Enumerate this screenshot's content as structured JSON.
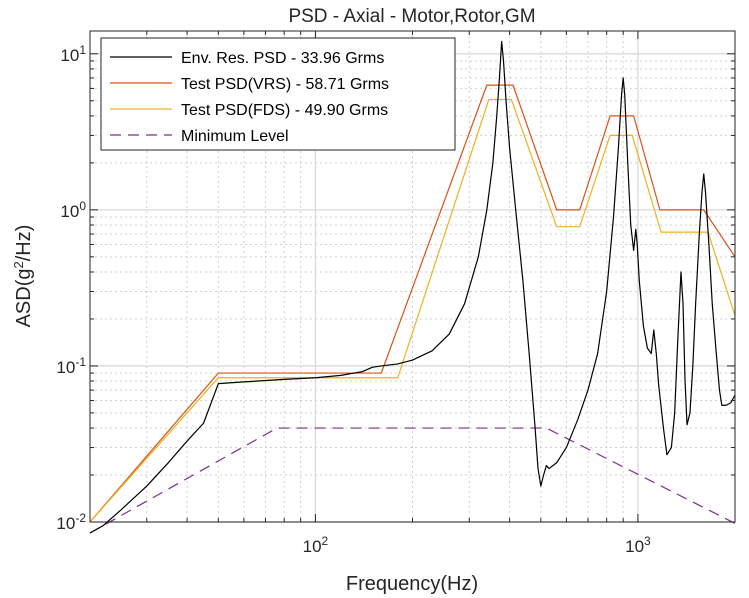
{
  "chart_data": {
    "type": "line",
    "title": "PSD - Axial - Motor,Rotor,GM",
    "xlabel": "Frequency(Hz)",
    "ylabel_prefix": "ASD(g",
    "ylabel_sup": "2",
    "ylabel_suffix": "/Hz)",
    "x_scale": "log",
    "y_scale": "log",
    "xlim": [
      20,
      2000
    ],
    "ylim": [
      0.01,
      14
    ],
    "grid": true,
    "legend_position": "top-left",
    "x_ticks": [
      {
        "value": 100,
        "base": "10",
        "exp": "2"
      },
      {
        "value": 1000,
        "base": "10",
        "exp": "3"
      }
    ],
    "y_ticks": [
      {
        "value": 0.01,
        "base": "10",
        "exp": "-2"
      },
      {
        "value": 0.1,
        "base": "10",
        "exp": "-1"
      },
      {
        "value": 1,
        "base": "10",
        "exp": "0"
      },
      {
        "value": 10,
        "base": "10",
        "exp": "1"
      }
    ],
    "series": [
      {
        "name": "Env. Res. PSD - 33.96 Grms",
        "color": "#000000",
        "dash": "",
        "points": [
          [
            20,
            0.0085
          ],
          [
            22,
            0.0095
          ],
          [
            25,
            0.012
          ],
          [
            30,
            0.017
          ],
          [
            35,
            0.024
          ],
          [
            40,
            0.033
          ],
          [
            45,
            0.043
          ],
          [
            50,
            0.077
          ],
          [
            60,
            0.079
          ],
          [
            80,
            0.082
          ],
          [
            100,
            0.084
          ],
          [
            120,
            0.087
          ],
          [
            140,
            0.092
          ],
          [
            150,
            0.098
          ],
          [
            160,
            0.1
          ],
          [
            180,
            0.103
          ],
          [
            200,
            0.109
          ],
          [
            230,
            0.125
          ],
          [
            260,
            0.16
          ],
          [
            290,
            0.25
          ],
          [
            320,
            0.5
          ],
          [
            340,
            1.0
          ],
          [
            355,
            2.0
          ],
          [
            365,
            4.0
          ],
          [
            372,
            7.0
          ],
          [
            378,
            12.0
          ],
          [
            383,
            9.0
          ],
          [
            390,
            5.0
          ],
          [
            400,
            2.5
          ],
          [
            420,
            0.9
          ],
          [
            440,
            0.35
          ],
          [
            460,
            0.12
          ],
          [
            480,
            0.04
          ],
          [
            490,
            0.022
          ],
          [
            500,
            0.017
          ],
          [
            510,
            0.02
          ],
          [
            520,
            0.023
          ],
          [
            530,
            0.022
          ],
          [
            560,
            0.024
          ],
          [
            600,
            0.03
          ],
          [
            650,
            0.045
          ],
          [
            700,
            0.07
          ],
          [
            750,
            0.12
          ],
          [
            800,
            0.3
          ],
          [
            840,
            0.9
          ],
          [
            870,
            2.5
          ],
          [
            890,
            5.5
          ],
          [
            900,
            7.0
          ],
          [
            910,
            5.5
          ],
          [
            930,
            2.0
          ],
          [
            950,
            0.8
          ],
          [
            970,
            0.55
          ],
          [
            985,
            0.75
          ],
          [
            995,
            0.6
          ],
          [
            1010,
            0.35
          ],
          [
            1040,
            0.18
          ],
          [
            1070,
            0.13
          ],
          [
            1100,
            0.12
          ],
          [
            1120,
            0.17
          ],
          [
            1140,
            0.12
          ],
          [
            1160,
            0.075
          ],
          [
            1200,
            0.04
          ],
          [
            1230,
            0.027
          ],
          [
            1270,
            0.03
          ],
          [
            1300,
            0.05
          ],
          [
            1330,
            0.15
          ],
          [
            1360,
            0.4
          ],
          [
            1380,
            0.25
          ],
          [
            1400,
            0.08
          ],
          [
            1420,
            0.042
          ],
          [
            1450,
            0.05
          ],
          [
            1480,
            0.1
          ],
          [
            1510,
            0.25
          ],
          [
            1550,
            0.7
          ],
          [
            1580,
            1.3
          ],
          [
            1600,
            1.7
          ],
          [
            1620,
            1.3
          ],
          [
            1660,
            0.6
          ],
          [
            1700,
            0.25
          ],
          [
            1750,
            0.12
          ],
          [
            1790,
            0.07
          ],
          [
            1820,
            0.056
          ],
          [
            1880,
            0.056
          ],
          [
            1940,
            0.058
          ],
          [
            2000,
            0.065
          ]
        ]
      },
      {
        "name": "Test PSD(VRS) - 58.71 Grms",
        "color": "#d95319",
        "dash": "",
        "points": [
          [
            20,
            0.01
          ],
          [
            50,
            0.09
          ],
          [
            160,
            0.09
          ],
          [
            340,
            6.3
          ],
          [
            410,
            6.3
          ],
          [
            560,
            1.0
          ],
          [
            660,
            1.0
          ],
          [
            820,
            4.0
          ],
          [
            970,
            4.0
          ],
          [
            1170,
            1.0
          ],
          [
            1600,
            1.0
          ],
          [
            2000,
            0.5
          ]
        ]
      },
      {
        "name": "Test PSD(FDS) - 49.90 Grms",
        "color": "#edb120",
        "dash": "",
        "points": [
          [
            20,
            0.01
          ],
          [
            50,
            0.084
          ],
          [
            180,
            0.084
          ],
          [
            345,
            5.1
          ],
          [
            405,
            5.1
          ],
          [
            560,
            0.78
          ],
          [
            660,
            0.78
          ],
          [
            820,
            3.0
          ],
          [
            960,
            3.0
          ],
          [
            1180,
            0.72
          ],
          [
            1650,
            0.72
          ],
          [
            2000,
            0.21
          ]
        ]
      },
      {
        "name": "Minimum Level",
        "color": "#7e2f8e",
        "dash": "11,7",
        "points": [
          [
            20,
            0.0085
          ],
          [
            76,
            0.04
          ],
          [
            520,
            0.04
          ],
          [
            2000,
            0.0098
          ]
        ]
      }
    ]
  }
}
